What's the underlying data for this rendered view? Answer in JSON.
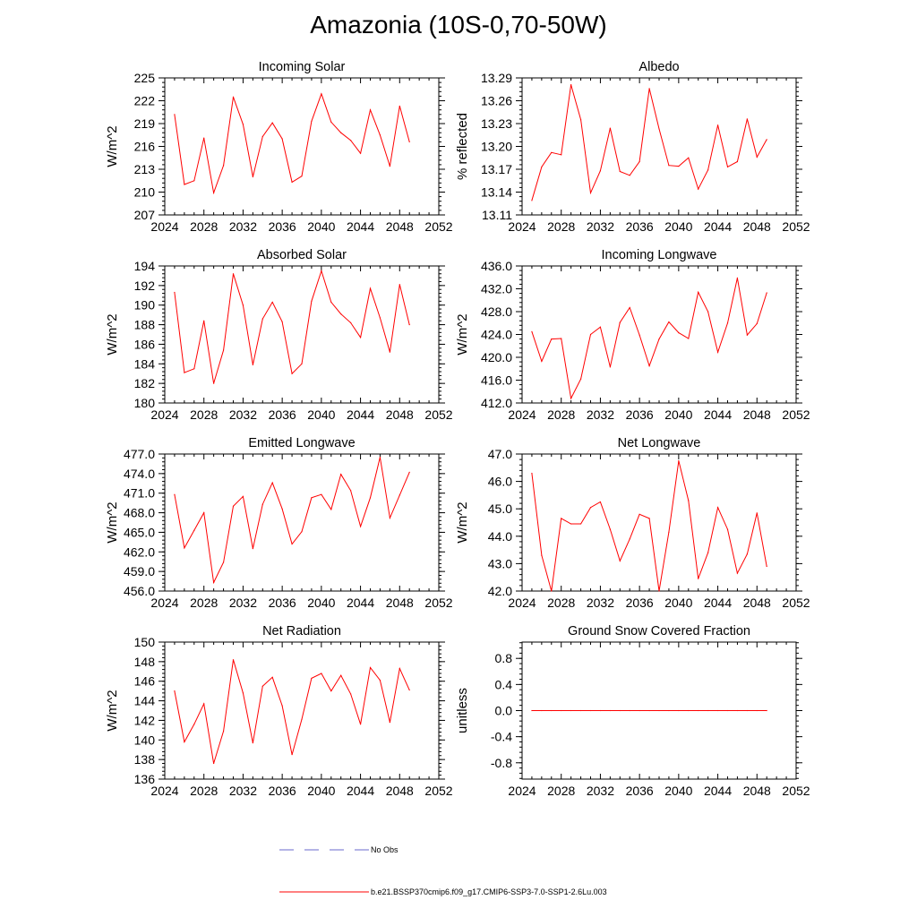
{
  "figure_title": "Amazonia (10S-0,70-50W)",
  "colors": {
    "series": "#ff0000",
    "obs": "#6a6acd",
    "axis": "#000000"
  },
  "legend": {
    "obs_label": "No Obs",
    "model_label": "b.e21.BSSP370cmip6.f09_g17.CMIP6-SSP3-7.0-SSP1-2.6Lu.003"
  },
  "chart_data": [
    {
      "type": "line",
      "title": "Incoming Solar",
      "ylabel": "W/m^2",
      "xlim": [
        2024,
        2052
      ],
      "xticks": [
        2024,
        2028,
        2032,
        2036,
        2040,
        2044,
        2048,
        2052
      ],
      "ylim": [
        207,
        225
      ],
      "yticks": [
        "207",
        "210",
        "213",
        "216",
        "219",
        "222",
        "225"
      ],
      "x": [
        2025,
        2026,
        2027,
        2028,
        2029,
        2030,
        2031,
        2032,
        2033,
        2034,
        2035,
        2036,
        2037,
        2038,
        2039,
        2040,
        2041,
        2042,
        2043,
        2044,
        2045,
        2046,
        2047,
        2048,
        2049
      ],
      "values": [
        220.2,
        211.0,
        211.5,
        217.1,
        209.9,
        213.5,
        222.5,
        218.9,
        212.0,
        217.3,
        219.1,
        217.0,
        211.3,
        212.1,
        219.3,
        222.9,
        219.2,
        217.8,
        216.8,
        215.1,
        220.8,
        217.5,
        213.4,
        221.3,
        216.6
      ]
    },
    {
      "type": "line",
      "title": "Albedo",
      "ylabel": "% reflected",
      "xlim": [
        2024,
        2052
      ],
      "xticks": [
        2024,
        2028,
        2032,
        2036,
        2040,
        2044,
        2048,
        2052
      ],
      "ylim": [
        13.11,
        13.29
      ],
      "yticks": [
        "13.11",
        "13.14",
        "13.17",
        "13.20",
        "13.23",
        "13.26",
        "13.29"
      ],
      "x": [
        2025,
        2026,
        2027,
        2028,
        2029,
        2030,
        2031,
        2032,
        2033,
        2034,
        2035,
        2036,
        2037,
        2038,
        2039,
        2040,
        2041,
        2042,
        2043,
        2044,
        2045,
        2046,
        2047,
        2048,
        2049
      ],
      "values": [
        13.129,
        13.173,
        13.192,
        13.189,
        13.281,
        13.235,
        13.139,
        13.168,
        13.224,
        13.167,
        13.162,
        13.18,
        13.276,
        13.223,
        13.175,
        13.174,
        13.185,
        13.144,
        13.169,
        13.228,
        13.173,
        13.18,
        13.236,
        13.186,
        13.209
      ]
    },
    {
      "type": "line",
      "title": "Absorbed Solar",
      "ylabel": "W/m^2",
      "xlim": [
        2024,
        2052
      ],
      "xticks": [
        2024,
        2028,
        2032,
        2036,
        2040,
        2044,
        2048,
        2052
      ],
      "ylim": [
        180,
        194
      ],
      "yticks": [
        "180",
        "182",
        "184",
        "186",
        "188",
        "190",
        "192",
        "194"
      ],
      "x": [
        2025,
        2026,
        2027,
        2028,
        2029,
        2030,
        2031,
        2032,
        2033,
        2034,
        2035,
        2036,
        2037,
        2038,
        2039,
        2040,
        2041,
        2042,
        2043,
        2044,
        2045,
        2046,
        2047,
        2048,
        2049
      ],
      "values": [
        191.3,
        183.1,
        183.5,
        188.4,
        182.0,
        185.4,
        193.2,
        190.0,
        183.9,
        188.6,
        190.3,
        188.3,
        183.0,
        184.0,
        190.4,
        193.5,
        190.3,
        189.1,
        188.2,
        186.7,
        191.7,
        188.7,
        185.2,
        192.1,
        188.0
      ]
    },
    {
      "type": "line",
      "title": "Incoming Longwave",
      "ylabel": "W/m^2",
      "xlim": [
        2024,
        2052
      ],
      "xticks": [
        2024,
        2028,
        2032,
        2036,
        2040,
        2044,
        2048,
        2052
      ],
      "ylim": [
        412.0,
        436.0
      ],
      "yticks": [
        "412.0",
        "416.0",
        "420.0",
        "424.0",
        "428.0",
        "432.0",
        "436.0"
      ],
      "x": [
        2025,
        2026,
        2027,
        2028,
        2029,
        2030,
        2031,
        2032,
        2033,
        2034,
        2035,
        2036,
        2037,
        2038,
        2039,
        2040,
        2041,
        2042,
        2043,
        2044,
        2045,
        2046,
        2047,
        2048,
        2049
      ],
      "values": [
        424.5,
        419.3,
        423.2,
        423.3,
        412.8,
        416.2,
        424.0,
        425.3,
        418.3,
        426.1,
        428.7,
        423.9,
        418.5,
        423.2,
        426.2,
        424.3,
        423.3,
        431.4,
        428.0,
        420.9,
        426.0,
        433.9,
        423.9,
        425.9,
        431.3
      ]
    },
    {
      "type": "line",
      "title": "Emitted Longwave",
      "ylabel": "W/m^2",
      "xlim": [
        2024,
        2052
      ],
      "xticks": [
        2024,
        2028,
        2032,
        2036,
        2040,
        2044,
        2048,
        2052
      ],
      "ylim": [
        456.0,
        477.0
      ],
      "yticks": [
        "456.0",
        "459.0",
        "462.0",
        "465.0",
        "468.0",
        "471.0",
        "474.0",
        "477.0"
      ],
      "x": [
        2025,
        2026,
        2027,
        2028,
        2029,
        2030,
        2031,
        2032,
        2033,
        2034,
        2035,
        2036,
        2037,
        2038,
        2039,
        2040,
        2041,
        2042,
        2043,
        2044,
        2045,
        2046,
        2047,
        2048,
        2049
      ],
      "values": [
        470.8,
        462.6,
        465.3,
        468.0,
        457.3,
        460.4,
        469.0,
        470.5,
        462.5,
        469.3,
        472.6,
        468.6,
        463.2,
        465.1,
        470.3,
        470.8,
        468.5,
        473.9,
        471.4,
        465.9,
        470.3,
        476.5,
        467.2,
        470.7,
        474.2
      ]
    },
    {
      "type": "line",
      "title": "Net Longwave",
      "ylabel": "W/m^2",
      "xlim": [
        2024,
        2052
      ],
      "xticks": [
        2024,
        2028,
        2032,
        2036,
        2040,
        2044,
        2048,
        2052
      ],
      "ylim": [
        42.0,
        47.0
      ],
      "yticks": [
        "42.0",
        "43.0",
        "44.0",
        "45.0",
        "46.0",
        "47.0"
      ],
      "x": [
        2025,
        2026,
        2027,
        2028,
        2029,
        2030,
        2031,
        2032,
        2033,
        2034,
        2035,
        2036,
        2037,
        2038,
        2039,
        2040,
        2041,
        2042,
        2043,
        2044,
        2045,
        2046,
        2047,
        2048,
        2049
      ],
      "values": [
        46.3,
        43.3,
        42.0,
        44.65,
        44.45,
        44.45,
        45.05,
        45.25,
        44.25,
        43.1,
        43.9,
        44.8,
        44.65,
        42.0,
        44.15,
        46.75,
        45.3,
        42.45,
        43.4,
        45.05,
        44.25,
        42.65,
        43.35,
        44.85,
        42.9
      ]
    },
    {
      "type": "line",
      "title": "Net Radiation",
      "ylabel": "W/m^2",
      "xlim": [
        2024,
        2052
      ],
      "xticks": [
        2024,
        2028,
        2032,
        2036,
        2040,
        2044,
        2048,
        2052
      ],
      "ylim": [
        136,
        150
      ],
      "yticks": [
        "136",
        "138",
        "140",
        "142",
        "144",
        "146",
        "148",
        "150"
      ],
      "x": [
        2025,
        2026,
        2027,
        2028,
        2029,
        2030,
        2031,
        2032,
        2033,
        2034,
        2035,
        2036,
        2037,
        2038,
        2039,
        2040,
        2041,
        2042,
        2043,
        2044,
        2045,
        2046,
        2047,
        2048,
        2049
      ],
      "values": [
        145.0,
        139.8,
        141.6,
        143.7,
        137.6,
        140.9,
        148.2,
        144.8,
        139.7,
        145.5,
        146.4,
        143.5,
        138.5,
        142.1,
        146.3,
        146.8,
        145.0,
        146.6,
        144.7,
        141.6,
        147.4,
        146.1,
        141.8,
        147.3,
        145.1
      ]
    },
    {
      "type": "line",
      "title": "Ground Snow Covered Fraction",
      "ylabel": "unitless",
      "xlim": [
        2024,
        2052
      ],
      "xticks": [
        2024,
        2028,
        2032,
        2036,
        2040,
        2044,
        2048,
        2052
      ],
      "ylim": [
        -1.05,
        1.05
      ],
      "yticks": [
        "-0.8",
        "-0.4",
        "0.0",
        "0.4",
        "0.8"
      ],
      "ytick_values": [
        -0.8,
        -0.4,
        0.0,
        0.4,
        0.8
      ],
      "x": [
        2025,
        2026,
        2027,
        2028,
        2029,
        2030,
        2031,
        2032,
        2033,
        2034,
        2035,
        2036,
        2037,
        2038,
        2039,
        2040,
        2041,
        2042,
        2043,
        2044,
        2045,
        2046,
        2047,
        2048,
        2049
      ],
      "values": [
        0,
        0,
        0,
        0,
        0,
        0,
        0,
        0,
        0,
        0,
        0,
        0,
        0,
        0,
        0,
        0,
        0,
        0,
        0,
        0,
        0,
        0,
        0,
        0,
        0
      ]
    }
  ]
}
